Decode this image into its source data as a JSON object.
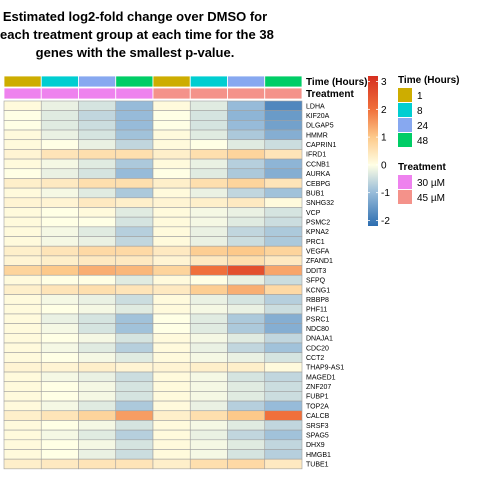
{
  "title_lines": [
    "Estimated log2-fold change over DMSO for",
    "each treatment group at each time for the 38",
    "genes with the smallest p-value."
  ],
  "chart_data": {
    "type": "heatmap",
    "annotation_rows": [
      "Time (Hours)",
      "Treatment"
    ],
    "columns": [
      {
        "time": "1",
        "treatment": "30 µM"
      },
      {
        "time": "8",
        "treatment": "30 µM"
      },
      {
        "time": "24",
        "treatment": "30 µM"
      },
      {
        "time": "48",
        "treatment": "30 µM"
      },
      {
        "time": "1",
        "treatment": "45 µM"
      },
      {
        "time": "8",
        "treatment": "45 µM"
      },
      {
        "time": "24",
        "treatment": "45 µM"
      },
      {
        "time": "48",
        "treatment": "45 µM"
      }
    ],
    "genes": [
      "LDHA",
      "KIF20A",
      "DLGAP5",
      "HMMR",
      "CAPRIN1",
      "IFRD1",
      "CCNB1",
      "AURKA",
      "CEBPG",
      "BUB1",
      "SNHG32",
      "VCP",
      "PSMC2",
      "KPNA2",
      "PRC1",
      "VEGFA",
      "ZFAND1",
      "DDIT3",
      "SFPQ",
      "KCNG1",
      "RBBP8",
      "PHF11",
      "PSRC1",
      "NDC80",
      "DNAJA1",
      "CDC20",
      "CCT2",
      "THAP9-AS1",
      "MAGED1",
      "ZNF207",
      "FUBP1",
      "TOP2A",
      "CALCB",
      "SRSF3",
      "SPAG5",
      "DHX9",
      "HMGB1",
      "TUBE1"
    ],
    "values": [
      [
        0.1,
        -0.2,
        -0.4,
        -1.0,
        0.1,
        -0.3,
        -1.0,
        -1.8
      ],
      [
        0.0,
        -0.3,
        -0.6,
        -1.0,
        0.0,
        -0.4,
        -1.1,
        -1.5
      ],
      [
        0.0,
        -0.3,
        -0.5,
        -1.0,
        0.0,
        -0.4,
        -1.0,
        -1.4
      ],
      [
        0.1,
        -0.2,
        -0.4,
        -0.9,
        0.1,
        -0.3,
        -0.8,
        -1.2
      ],
      [
        0.1,
        0.0,
        -0.2,
        -0.6,
        0.1,
        0.0,
        -0.3,
        -0.5
      ],
      [
        0.2,
        0.5,
        0.6,
        0.6,
        0.3,
        0.6,
        0.8,
        0.5
      ],
      [
        0.1,
        -0.1,
        -0.3,
        -0.8,
        0.1,
        -0.2,
        -0.7,
        -1.1
      ],
      [
        0.0,
        -0.2,
        -0.4,
        -1.0,
        0.0,
        -0.3,
        -0.8,
        -1.2
      ],
      [
        0.3,
        0.4,
        0.6,
        0.6,
        0.3,
        0.6,
        0.8,
        0.5
      ],
      [
        0.1,
        -0.1,
        -0.3,
        -0.8,
        0.1,
        -0.2,
        -0.6,
        -0.9
      ],
      [
        0.2,
        0.2,
        0.4,
        0.3,
        0.2,
        0.3,
        0.4,
        0.1
      ],
      [
        0.1,
        0.0,
        0.1,
        -0.3,
        0.1,
        -0.1,
        -0.2,
        -0.4
      ],
      [
        0.1,
        0.0,
        0.0,
        -0.4,
        0.1,
        -0.1,
        -0.3,
        -0.5
      ],
      [
        0.1,
        -0.1,
        -0.3,
        -0.7,
        0.1,
        -0.2,
        -0.6,
        -0.8
      ],
      [
        0.1,
        -0.1,
        -0.2,
        -0.6,
        0.1,
        -0.2,
        -0.5,
        -0.8
      ],
      [
        0.3,
        0.5,
        0.7,
        0.7,
        0.4,
        0.9,
        1.0,
        0.8
      ],
      [
        0.2,
        0.3,
        0.4,
        0.4,
        0.2,
        0.4,
        0.6,
        0.4
      ],
      [
        0.8,
        1.0,
        1.3,
        1.2,
        0.8,
        2.0,
        2.6,
        1.4
      ],
      [
        0.1,
        0.0,
        0.0,
        -0.3,
        0.1,
        0.0,
        -0.2,
        -0.5
      ],
      [
        0.3,
        0.5,
        0.6,
        0.5,
        0.4,
        0.9,
        1.3,
        0.7
      ],
      [
        0.1,
        -0.1,
        -0.2,
        -0.5,
        0.1,
        -0.2,
        -0.4,
        -0.7
      ],
      [
        0.1,
        0.0,
        -0.1,
        -0.3,
        0.1,
        -0.1,
        -0.2,
        -0.5
      ],
      [
        0.1,
        -0.2,
        -0.4,
        -0.9,
        0.0,
        -0.3,
        -0.8,
        -1.2
      ],
      [
        0.1,
        -0.1,
        -0.4,
        -0.9,
        0.0,
        -0.3,
        -0.8,
        -1.2
      ],
      [
        0.1,
        0.0,
        -0.1,
        -0.4,
        0.1,
        -0.1,
        -0.3,
        -0.6
      ],
      [
        0.1,
        -0.1,
        -0.3,
        -0.7,
        0.1,
        -0.2,
        -0.6,
        -0.9
      ],
      [
        0.1,
        0.0,
        -0.1,
        -0.3,
        0.1,
        -0.1,
        -0.2,
        -0.4
      ],
      [
        0.2,
        0.2,
        0.3,
        0.2,
        0.2,
        0.3,
        0.3,
        0.1
      ],
      [
        0.1,
        -0.1,
        -0.2,
        -0.5,
        0.1,
        -0.1,
        -0.4,
        -0.6
      ],
      [
        0.1,
        0.0,
        -0.1,
        -0.4,
        0.1,
        -0.1,
        -0.3,
        -0.5
      ],
      [
        0.1,
        0.0,
        -0.1,
        -0.4,
        0.1,
        -0.1,
        -0.3,
        -0.5
      ],
      [
        0.1,
        -0.1,
        -0.3,
        -0.8,
        0.1,
        -0.2,
        -0.7,
        -1.0
      ],
      [
        0.3,
        0.5,
        0.8,
        1.5,
        0.3,
        0.6,
        1.0,
        2.0
      ],
      [
        0.1,
        0.0,
        -0.1,
        -0.4,
        0.1,
        -0.1,
        -0.3,
        -0.6
      ],
      [
        0.1,
        -0.1,
        -0.3,
        -0.7,
        0.1,
        -0.2,
        -0.6,
        -0.9
      ],
      [
        0.1,
        0.0,
        -0.1,
        -0.4,
        0.1,
        -0.1,
        -0.3,
        -0.6
      ],
      [
        0.1,
        0.0,
        -0.2,
        -0.5,
        0.1,
        -0.1,
        -0.4,
        -0.7
      ],
      [
        0.3,
        0.4,
        0.5,
        0.5,
        0.3,
        0.6,
        0.7,
        0.4
      ]
    ],
    "color_scale": {
      "range": [
        -2,
        3
      ],
      "ticks": [
        3,
        2,
        1,
        0,
        -1,
        -2
      ],
      "stops": [
        {
          "value": -2.2,
          "color": "#2c6db0"
        },
        {
          "value": -1,
          "color": "#97bbd9"
        },
        {
          "value": 0,
          "color": "#ffffe5"
        },
        {
          "value": 1,
          "color": "#fdc98a"
        },
        {
          "value": 2,
          "color": "#f0703b"
        },
        {
          "value": 3.2,
          "color": "#d62f20"
        }
      ]
    },
    "legend": {
      "time": {
        "title": "Time (Hours)",
        "items": [
          {
            "label": "1",
            "color": "#cdad00"
          },
          {
            "label": "8",
            "color": "#00ced1"
          },
          {
            "label": "24",
            "color": "#87a8f0"
          },
          {
            "label": "48",
            "color": "#00cd66"
          }
        ]
      },
      "treatment": {
        "title": "Treatment",
        "items": [
          {
            "label": "30 µM",
            "color": "#ee82ee"
          },
          {
            "label": "45 µM",
            "color": "#f4928a"
          }
        ]
      }
    }
  }
}
